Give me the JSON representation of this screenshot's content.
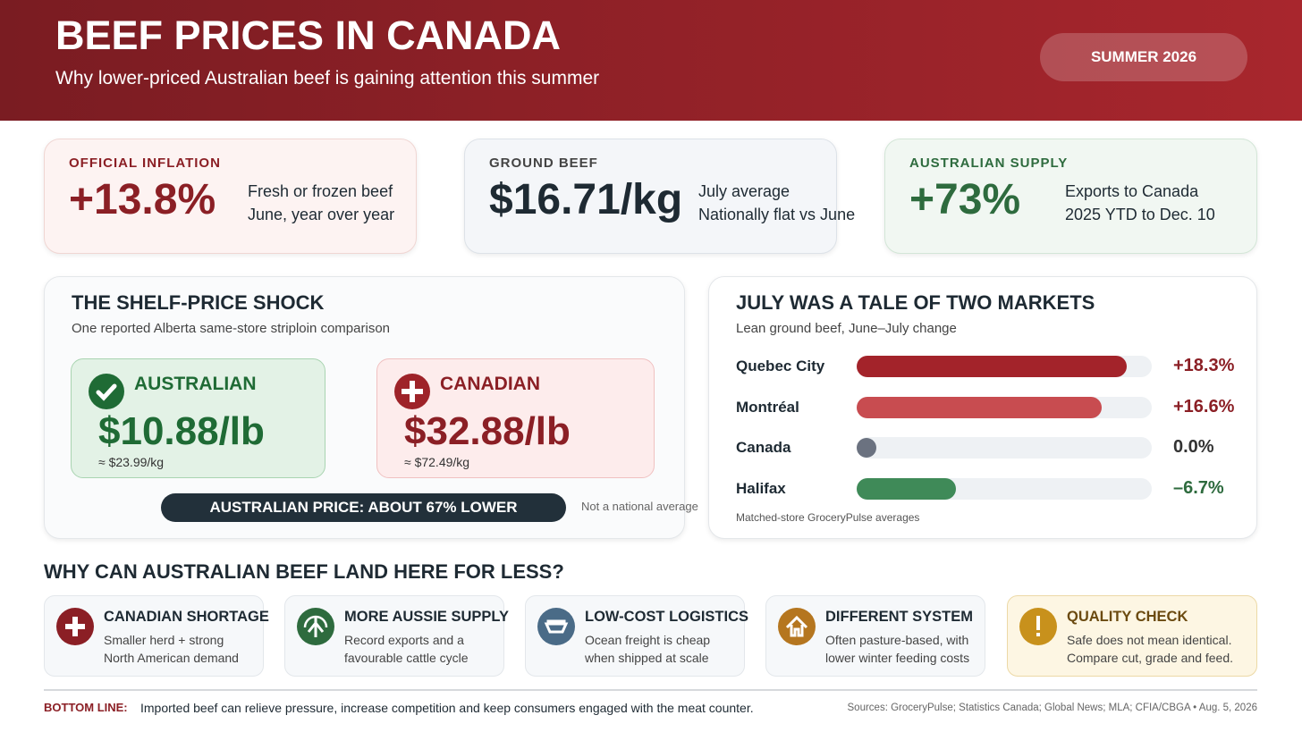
{
  "header": {
    "title": "BEEF PRICES IN CANADA",
    "subtitle": "Why lower-priced Australian beef is gaining attention this summer",
    "badge": "SUMMER 2026"
  },
  "kpis": [
    {
      "label": "OFFICIAL INFLATION",
      "value": "+13.8%",
      "notes": [
        "Fresh or frozen beef",
        "June, year over year"
      ]
    },
    {
      "label": "GROUND BEEF",
      "value": "$16.71/kg",
      "notes": [
        "July average",
        "Nationally flat vs June"
      ]
    },
    {
      "label": "AUSTRALIAN SUPPLY",
      "value": "+73%",
      "notes": [
        "Exports to Canada",
        "2025 YTD to Dec. 10"
      ]
    }
  ],
  "shock": {
    "title": "THE SHELF-PRICE SHOCK",
    "subtitle": "One reported Alberta same-store striploin comparison",
    "cards": [
      {
        "name": "AUSTRALIAN",
        "price": "$10.88/lb",
        "approx": "≈ $23.99/kg"
      },
      {
        "name": "CANADIAN",
        "price": "$32.88/lb",
        "approx": "≈ $72.49/kg"
      }
    ],
    "banner": "AUSTRALIAN PRICE: ABOUT 67% LOWER",
    "note": "Not a national average"
  },
  "chart_data": {
    "type": "bar",
    "title": "JULY WAS A TALE OF TWO MARKETS",
    "subtitle": "Lean ground beef, June–July change",
    "categories": [
      "Quebec City",
      "Montréal",
      "Canada",
      "Halifax"
    ],
    "values": [
      18.3,
      16.6,
      0.0,
      -6.7
    ],
    "value_labels": [
      "+18.3%",
      "+16.6%",
      "0.0%",
      "–6.7%"
    ],
    "colors": [
      "#a3232a",
      "#c84c50",
      "#6b7280",
      "#3f8a58"
    ],
    "xlim": [
      0,
      20
    ],
    "footnote": "Matched-store GroceryPulse averages"
  },
  "why": {
    "title": "WHY CAN AUSTRALIAN BEEF LAND HERE FOR LESS?",
    "items": [
      {
        "title": "CANADIAN SHORTAGE",
        "lines": [
          "Smaller herd + strong",
          "North American demand"
        ]
      },
      {
        "title": "MORE AUSSIE SUPPLY",
        "lines": [
          "Record exports and a",
          "favourable cattle cycle"
        ]
      },
      {
        "title": "LOW-COST LOGISTICS",
        "lines": [
          "Ocean freight is cheap",
          "when shipped at scale"
        ]
      },
      {
        "title": "DIFFERENT SYSTEM",
        "lines": [
          "Often pasture-based, with",
          "lower winter feeding costs"
        ]
      },
      {
        "title": "QUALITY CHECK",
        "lines": [
          "Safe does not mean identical.",
          "Compare cut, grade and feed."
        ]
      }
    ]
  },
  "footer": {
    "label": "BOTTOM LINE:",
    "text": "Imported beef can relieve pressure, increase competition and keep consumers engaged with the meat counter.",
    "sources": "Sources: GroceryPulse; Statistics Canada; Global News; MLA; CFIA/CBGA • Aug. 5, 2026"
  }
}
